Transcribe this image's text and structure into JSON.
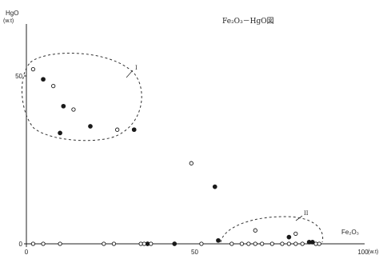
{
  "chart_data": {
    "type": "scatter",
    "title": "Fe₂O₃－HgO図",
    "ylabel": "HgO",
    "ylabel_unit": "(w.t)",
    "xlabel": "(w.t)",
    "x_axis_end_label": "Fe₂O₃",
    "xlim": [
      0,
      100
    ],
    "ylim": [
      0,
      62
    ],
    "x_ticks": [
      0,
      50,
      100
    ],
    "y_ticks": [
      0,
      50
    ],
    "grid": false,
    "series": [
      {
        "marker": "filled",
        "points": [
          {
            "x": 5,
            "y": 49
          },
          {
            "x": 11,
            "y": 41
          },
          {
            "x": 19,
            "y": 35
          },
          {
            "x": 10,
            "y": 33
          },
          {
            "x": 32,
            "y": 34
          },
          {
            "x": 56,
            "y": 17
          },
          {
            "x": 57,
            "y": 1
          },
          {
            "x": 44,
            "y": 0
          },
          {
            "x": 36,
            "y": 0
          },
          {
            "x": 78,
            "y": 2
          },
          {
            "x": 84,
            "y": 0.5
          },
          {
            "x": 85,
            "y": 0.5
          }
        ]
      },
      {
        "marker": "open",
        "points": [
          {
            "x": 2,
            "y": 52
          },
          {
            "x": 8,
            "y": 47
          },
          {
            "x": 14,
            "y": 40
          },
          {
            "x": 27,
            "y": 34
          },
          {
            "x": 49,
            "y": 24
          },
          {
            "x": 68,
            "y": 4
          },
          {
            "x": 80,
            "y": 3
          },
          {
            "x": 2,
            "y": 0
          },
          {
            "x": 5,
            "y": 0
          },
          {
            "x": 10,
            "y": 0
          },
          {
            "x": 23,
            "y": 0
          },
          {
            "x": 26,
            "y": 0
          },
          {
            "x": 34,
            "y": 0
          },
          {
            "x": 35,
            "y": 0
          },
          {
            "x": 37,
            "y": 0
          },
          {
            "x": 52,
            "y": 0
          },
          {
            "x": 61,
            "y": 0
          },
          {
            "x": 64,
            "y": 0
          },
          {
            "x": 66,
            "y": 0
          },
          {
            "x": 68,
            "y": 0
          },
          {
            "x": 70,
            "y": 0
          },
          {
            "x": 73,
            "y": 0
          },
          {
            "x": 76,
            "y": 0
          },
          {
            "x": 78,
            "y": 0
          },
          {
            "x": 80,
            "y": 0
          },
          {
            "x": 82,
            "y": 0
          },
          {
            "x": 86,
            "y": 0
          },
          {
            "x": 87,
            "y": 0
          }
        ]
      }
    ],
    "regions": [
      {
        "label": "I",
        "shape": "dashed-ellipse"
      },
      {
        "label": "II",
        "shape": "dashed-arc"
      }
    ]
  },
  "colors": {
    "axis": "#222222",
    "marker": "#1a1a1a",
    "dashed": "#333333"
  }
}
